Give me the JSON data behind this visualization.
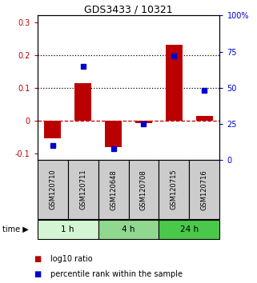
{
  "title": "GDS3433 / 10321",
  "samples": [
    "GSM120710",
    "GSM120711",
    "GSM120648",
    "GSM120708",
    "GSM120715",
    "GSM120716"
  ],
  "log10_ratio": [
    -0.055,
    0.113,
    -0.082,
    -0.007,
    0.232,
    0.013
  ],
  "percentile_rank_pct": [
    10,
    65,
    8,
    25,
    72,
    48
  ],
  "time_groups": [
    {
      "label": "1 h",
      "indices": [
        0,
        1
      ],
      "color": "#d4f5d4"
    },
    {
      "label": "4 h",
      "indices": [
        2,
        3
      ],
      "color": "#90d890"
    },
    {
      "label": "24 h",
      "indices": [
        4,
        5
      ],
      "color": "#4ac84a"
    }
  ],
  "bar_color": "#bb0000",
  "dot_color": "#0000cc",
  "ylim_left": [
    -0.12,
    0.32
  ],
  "ylim_right": [
    0,
    100
  ],
  "yticks_left": [
    -0.1,
    0.0,
    0.1,
    0.2,
    0.3
  ],
  "yticks_right": [
    0,
    25,
    50,
    75,
    100
  ],
  "ytick_labels_left": [
    "-0.1",
    "0",
    "0.1",
    "0.2",
    "0.3"
  ],
  "ytick_labels_right": [
    "0",
    "25",
    "50",
    "75",
    "100%"
  ],
  "hlines": [
    0.1,
    0.2
  ],
  "bg_color": "#ffffff",
  "legend_items": [
    "log10 ratio",
    "percentile rank within the sample"
  ],
  "time_label": "time"
}
